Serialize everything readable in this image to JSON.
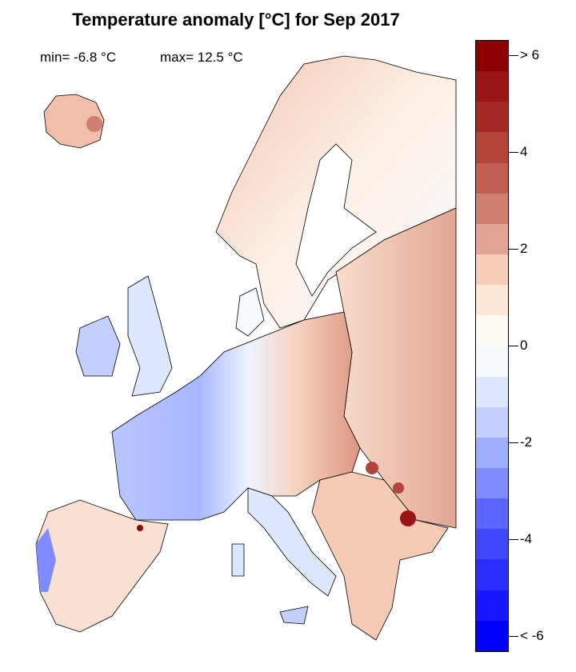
{
  "title": "Temperature anomaly [°C] for Sep 2017",
  "stats": {
    "min": "min= -6.8 °C",
    "max": "max= 12.5 °C"
  },
  "colorbar": {
    "colors": [
      "#8b0000",
      "#9a1515",
      "#a52a25",
      "#b3443a",
      "#c05e52",
      "#d08070",
      "#e3a694",
      "#f5cdb9",
      "#fde9da",
      "#fffbf3",
      "#f7fbff",
      "#dde8ff",
      "#c2cfff",
      "#a0aeff",
      "#7f8cff",
      "#5b66ff",
      "#3f48ff",
      "#2a2dff",
      "#1818ff",
      "#0000ff"
    ],
    "ticks": [
      {
        "value": 6,
        "label": "> 6"
      },
      {
        "value": 4,
        "label": "4"
      },
      {
        "value": 2,
        "label": "2"
      },
      {
        "value": 0,
        "label": "0"
      },
      {
        "value": -2,
        "label": "-2"
      },
      {
        "value": -4,
        "label": "-4"
      },
      {
        "value": -6,
        "label": "< -6"
      }
    ]
  }
}
